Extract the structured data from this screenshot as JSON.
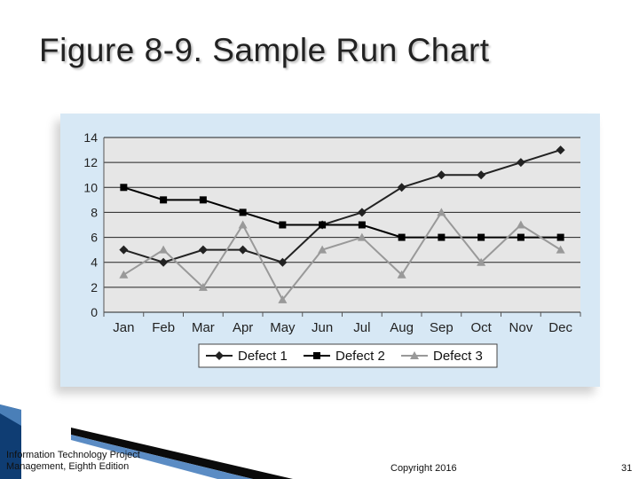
{
  "slide": {
    "title": "Figure 8-9. Sample Run Chart",
    "footer_left_line1": "Information Technology Project",
    "footer_left_line2": "Management, Eighth Edition",
    "footer_center": "Copyright 2016",
    "footer_right": "31"
  },
  "colors": {
    "panel_background": "#d7e8f5",
    "plot_background": "#e6e6e6",
    "gridline": "#222222",
    "defect1": "#222222",
    "defect2": "#000000",
    "defect3": "#999999"
  },
  "chart_data": {
    "type": "line",
    "title": "",
    "xlabel": "",
    "ylabel": "",
    "categories": [
      "Jan",
      "Feb",
      "Mar",
      "Apr",
      "May",
      "Jun",
      "Jul",
      "Aug",
      "Sep",
      "Oct",
      "Nov",
      "Dec"
    ],
    "ylim": [
      0,
      14
    ],
    "yticks": [
      "0",
      "2",
      "4",
      "6",
      "8",
      "10",
      "12",
      "14"
    ],
    "grid": true,
    "legend_position": "bottom",
    "series": [
      {
        "name": "Defect 1",
        "marker": "diamond",
        "values": [
          5,
          4,
          5,
          5,
          4,
          7,
          8,
          10,
          11,
          11,
          12,
          13
        ]
      },
      {
        "name": "Defect 2",
        "marker": "square",
        "values": [
          10,
          9,
          9,
          8,
          7,
          7,
          7,
          6,
          6,
          6,
          6,
          6
        ]
      },
      {
        "name": "Defect 3",
        "marker": "triangle",
        "values": [
          3,
          5,
          2,
          7,
          1,
          5,
          6,
          3,
          8,
          4,
          7,
          5
        ]
      }
    ]
  }
}
